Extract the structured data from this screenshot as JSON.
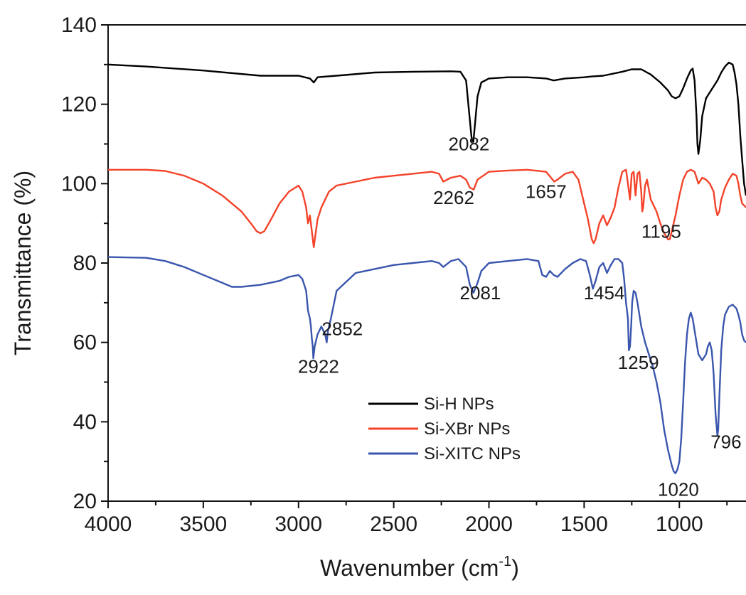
{
  "chart_data": {
    "type": "line",
    "title": "",
    "xlabel": "Wavenumber (cm",
    "xlabel_sup": "-1",
    "xlabel_close": ")",
    "ylabel": "Transmittance (%)",
    "xlim": [
      4000,
      650
    ],
    "ylim": [
      20,
      140
    ],
    "x_reversed": true,
    "grid": false,
    "legend_position": "lower-center",
    "xticks": [
      4000,
      3500,
      3000,
      2500,
      2000,
      1500,
      1000
    ],
    "yticks": [
      20,
      40,
      60,
      80,
      100,
      120,
      140
    ],
    "series": [
      {
        "name": "Si-H NPs",
        "color": "#000000",
        "x": [
          4000,
          3800,
          3500,
          3200,
          3000,
          2940,
          2920,
          2900,
          2852,
          2800,
          2600,
          2400,
          2200,
          2150,
          2120,
          2100,
          2090,
          2082,
          2075,
          2060,
          2040,
          2000,
          1900,
          1800,
          1700,
          1660,
          1600,
          1500,
          1460,
          1400,
          1300,
          1250,
          1200,
          1150,
          1100,
          1060,
          1040,
          1020,
          1000,
          980,
          960,
          940,
          930,
          920,
          910,
          905,
          900,
          890,
          880,
          860,
          840,
          820,
          800,
          780,
          760,
          740,
          720,
          710,
          700,
          690,
          680,
          670,
          660,
          650
        ],
        "y": [
          130,
          129.5,
          128.5,
          127.2,
          127.2,
          126.5,
          125.5,
          126.8,
          127,
          127.2,
          128,
          128.2,
          128.3,
          128.2,
          126,
          116,
          111,
          110.5,
          114,
          122,
          125.5,
          126.5,
          126.8,
          126.8,
          126.5,
          126,
          126.5,
          126.8,
          127,
          127.2,
          128.2,
          128.8,
          128.8,
          127.5,
          125.5,
          123.5,
          122,
          121.5,
          122,
          124,
          126.5,
          128.5,
          129,
          126,
          117,
          110,
          107.5,
          111,
          117,
          121.5,
          123,
          124.5,
          126,
          128,
          129.5,
          130.5,
          130,
          128,
          125,
          120,
          112,
          106,
          100,
          97
        ]
      },
      {
        "name": "Si-XBr NPs",
        "color": "#f4432a",
        "x": [
          4000,
          3800,
          3700,
          3600,
          3500,
          3400,
          3300,
          3250,
          3220,
          3200,
          3180,
          3150,
          3100,
          3050,
          3000,
          2980,
          2960,
          2950,
          2940,
          2930,
          2920,
          2900,
          2880,
          2860,
          2840,
          2800,
          2700,
          2600,
          2500,
          2400,
          2300,
          2262,
          2240,
          2200,
          2150,
          2120,
          2100,
          2080,
          2060,
          2000,
          1900,
          1800,
          1700,
          1657,
          1640,
          1600,
          1560,
          1530,
          1500,
          1480,
          1460,
          1450,
          1440,
          1420,
          1400,
          1380,
          1360,
          1340,
          1320,
          1300,
          1280,
          1270,
          1259,
          1250,
          1240,
          1230,
          1220,
          1210,
          1200,
          1195,
          1190,
          1180,
          1170,
          1150,
          1120,
          1100,
          1080,
          1060,
          1050,
          1040,
          1020,
          1000,
          980,
          960,
          940,
          920,
          900,
          880,
          860,
          840,
          820,
          810,
          800,
          790,
          780,
          760,
          740,
          720,
          700,
          690,
          680,
          670,
          660,
          650
        ],
        "y": [
          103.5,
          103.5,
          103.2,
          102,
          100,
          97,
          93,
          90,
          88,
          87.5,
          88,
          90.5,
          95,
          98,
          99.5,
          98,
          94,
          90,
          92,
          88,
          84,
          91,
          94,
          96,
          98,
          99.5,
          100.5,
          101.5,
          102,
          102.5,
          103,
          102.5,
          100.5,
          101.5,
          102,
          101,
          99,
          98.5,
          101,
          103,
          103.3,
          103.5,
          103,
          100.5,
          101,
          102.5,
          103,
          101,
          95,
          91,
          86,
          85,
          86,
          90,
          92,
          89.5,
          91.5,
          94,
          99,
          103,
          103.5,
          100,
          96,
          102.5,
          103,
          97,
          102.5,
          103,
          98,
          93,
          94,
          99.5,
          101,
          96,
          93,
          90,
          87.5,
          86,
          86,
          88,
          92,
          97,
          101,
          103,
          103.5,
          103,
          100,
          101.5,
          101,
          100,
          98,
          94,
          92,
          93,
          96,
          99,
          101,
          102.5,
          102,
          100,
          97,
          95,
          94.5,
          94
        ]
      },
      {
        "name": "Si-XITC NPs",
        "color": "#3a56ad",
        "x": [
          4000,
          3800,
          3700,
          3600,
          3500,
          3400,
          3350,
          3300,
          3200,
          3100,
          3050,
          3000,
          2980,
          2960,
          2950,
          2940,
          2935,
          2930,
          2925,
          2922,
          2915,
          2900,
          2880,
          2860,
          2852,
          2845,
          2830,
          2800,
          2700,
          2600,
          2500,
          2400,
          2300,
          2262,
          2240,
          2200,
          2160,
          2120,
          2100,
          2081,
          2060,
          2040,
          2000,
          1900,
          1800,
          1740,
          1720,
          1700,
          1680,
          1660,
          1640,
          1600,
          1560,
          1520,
          1490,
          1470,
          1454,
          1440,
          1420,
          1400,
          1380,
          1360,
          1340,
          1320,
          1300,
          1290,
          1280,
          1270,
          1265,
          1259,
          1253,
          1248,
          1240,
          1230,
          1220,
          1200,
          1180,
          1160,
          1140,
          1120,
          1100,
          1080,
          1060,
          1040,
          1030,
          1020,
          1010,
          1000,
          990,
          980,
          970,
          960,
          950,
          940,
          930,
          920,
          910,
          900,
          880,
          860,
          850,
          840,
          830,
          820,
          810,
          800,
          796,
          790,
          780,
          770,
          760,
          740,
          720,
          700,
          690,
          680,
          670,
          660,
          650
        ],
        "y": [
          81.5,
          81.3,
          80.5,
          79,
          77,
          75,
          74,
          74,
          74.5,
          75.5,
          76.5,
          77,
          76,
          73,
          68,
          66,
          64,
          61,
          59,
          56,
          59,
          62,
          64,
          62,
          60,
          63,
          66,
          73,
          77.5,
          78.5,
          79.5,
          80,
          80.5,
          80,
          79,
          80.5,
          81,
          79,
          74.5,
          72.5,
          75,
          78,
          80,
          80.5,
          81,
          80.5,
          77,
          76.5,
          78,
          77,
          76.5,
          78.5,
          80,
          81,
          80.5,
          77,
          73.5,
          75.5,
          79,
          80,
          77.5,
          79.5,
          81,
          81,
          80,
          76,
          70,
          66,
          58,
          59,
          64,
          70,
          73,
          72.5,
          70,
          64,
          60,
          57,
          54,
          50,
          45,
          38,
          33,
          29,
          27.5,
          27,
          28,
          30,
          36,
          45,
          55,
          62,
          66,
          67.5,
          66,
          63,
          60,
          57,
          55.5,
          57,
          59,
          60,
          58,
          52,
          42,
          36.5,
          38,
          46,
          58,
          64,
          67,
          69,
          69.5,
          68.5,
          67,
          65,
          62,
          60.5,
          60
        ]
      }
    ],
    "annotations": [
      {
        "text": "2082",
        "x": 2105,
        "y": 110.5
      },
      {
        "text": "2262",
        "x": 2185,
        "y": 97
      },
      {
        "text": "1657",
        "x": 1700,
        "y": 98.5
      },
      {
        "text": "1195",
        "x": 1095,
        "y": 88.5
      },
      {
        "text": "2081",
        "x": 2045,
        "y": 73
      },
      {
        "text": "1454",
        "x": 1395,
        "y": 73
      },
      {
        "text": "2852",
        "x": 2770,
        "y": 64
      },
      {
        "text": "2922",
        "x": 2895,
        "y": 54.5
      },
      {
        "text": "1259",
        "x": 1215,
        "y": 55.5
      },
      {
        "text": "796",
        "x": 755,
        "y": 35.5
      },
      {
        "text": "1020",
        "x": 1005,
        "y": 23.5
      }
    ]
  }
}
